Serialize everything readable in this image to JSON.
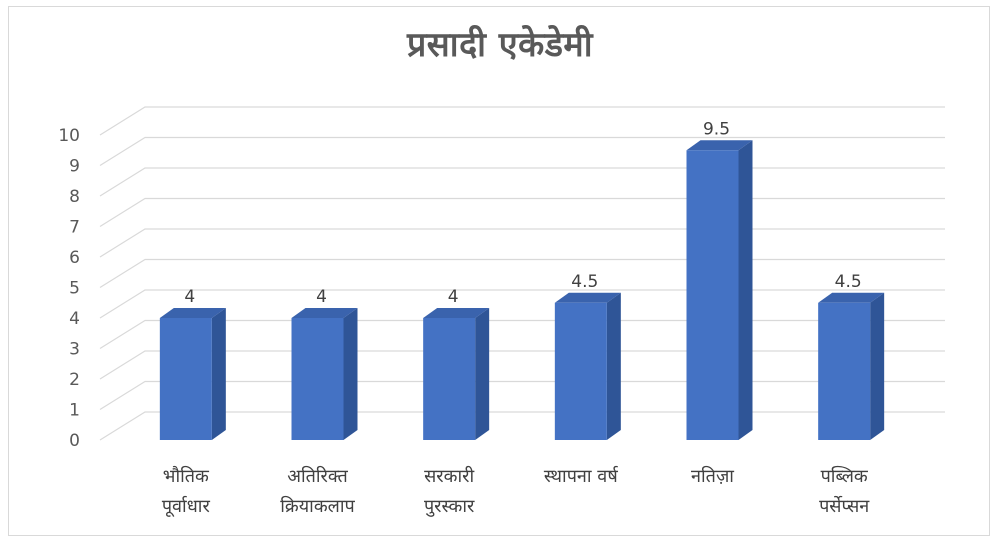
{
  "chart_data": {
    "type": "bar",
    "title": "प्रसादी एकेडेमी",
    "categories": [
      [
        "भौतिक",
        "पूर्वाधार"
      ],
      [
        "अतिरिक्त",
        "क्रियाकलाप"
      ],
      [
        "सरकारी",
        "पुरस्कार"
      ],
      [
        "स्थापना वर्ष"
      ],
      [
        "नतिज़ा"
      ],
      [
        "पब्लिक",
        "पर्सेप्सन"
      ]
    ],
    "values": [
      4,
      4,
      4,
      4.5,
      9.5,
      4.5
    ],
    "data_labels": [
      "4",
      "4",
      "4",
      "4.5",
      "9.5",
      "4.5"
    ],
    "ylim": [
      0,
      10
    ],
    "yticks": [
      "0",
      "1",
      "2",
      "3",
      "4",
      "5",
      "6",
      "7",
      "8",
      "9",
      "10"
    ],
    "grid": true,
    "style": "3d-clustered-column",
    "colors": {
      "bar_front": "#4472C4",
      "bar_side": "#2F5597",
      "bar_top": "#3A63AD",
      "grid": "#d9d9d9"
    }
  }
}
